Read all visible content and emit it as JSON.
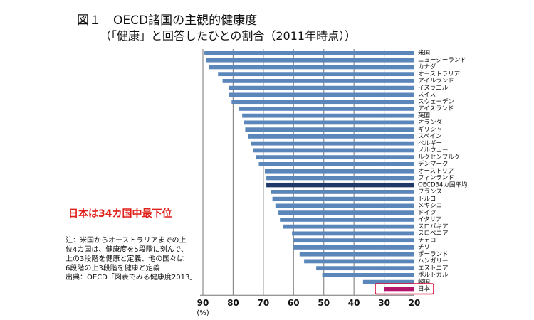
{
  "title": "図１　OECD諸国の主観的健康度",
  "subtitle": "（「健康」と回答したひとの割合（2011年時点））",
  "callout": "日本は34カ国中最下位",
  "notes": [
    "注：米国からオーストラリアまでの上",
    "位4カ国は、健康度を5段階に刻んで、",
    "上の3段階を健康と定義、他の国々は",
    "6段階の上3段階を健康と定義",
    "出典：OECD「図表でみる健康度2013」"
  ],
  "colors": {
    "bar": "#5b86b9",
    "average": "#1f3868",
    "japan": "#b4176a",
    "callout": "#e0201b",
    "highlight_box": "#d8103a",
    "gridline": "#8c8c8c"
  },
  "chart_data": {
    "type": "bar",
    "orientation": "horizontal",
    "x_reversed": true,
    "xlabel": "(%)",
    "xlim": [
      90,
      20
    ],
    "xticks": [
      90,
      80,
      70,
      60,
      50,
      40,
      30,
      20
    ],
    "categories": [
      "米国",
      "ニュージーランド",
      "カナダ",
      "オーストラリア",
      "アイルランド",
      "イスラエル",
      "スイス",
      "スウェーデン",
      "アイスランド",
      "英国",
      "オランダ",
      "ギリシャ",
      "スペイン",
      "ベルギー",
      "ノルウェー",
      "ルクセンブルク",
      "デンマーク",
      "オーストリア",
      "フィンランド",
      "OECD34カ国平均",
      "フランス",
      "トルコ",
      "メキシコ",
      "ドイツ",
      "イタリア",
      "スロバキア",
      "スロベニア",
      "チェコ",
      "チリ",
      "ポーランド",
      "ハンガリー",
      "エストニア",
      "ポルトガル",
      "韓国",
      "日本"
    ],
    "values": [
      89.5,
      89.0,
      88.0,
      85.0,
      83.5,
      81.5,
      81.5,
      80.5,
      78.0,
      77.0,
      76.5,
      76.0,
      75.0,
      74.0,
      73.5,
      72.5,
      71.5,
      69.5,
      69.0,
      69.0,
      67.5,
      67.0,
      66.0,
      65.0,
      64.5,
      63.5,
      60.5,
      60.0,
      60.0,
      58.0,
      56.5,
      52.5,
      50.5,
      37.0,
      30.0
    ],
    "average_category": "OECD34カ国平均",
    "highlight_category": "日本",
    "grid": "vertical"
  }
}
